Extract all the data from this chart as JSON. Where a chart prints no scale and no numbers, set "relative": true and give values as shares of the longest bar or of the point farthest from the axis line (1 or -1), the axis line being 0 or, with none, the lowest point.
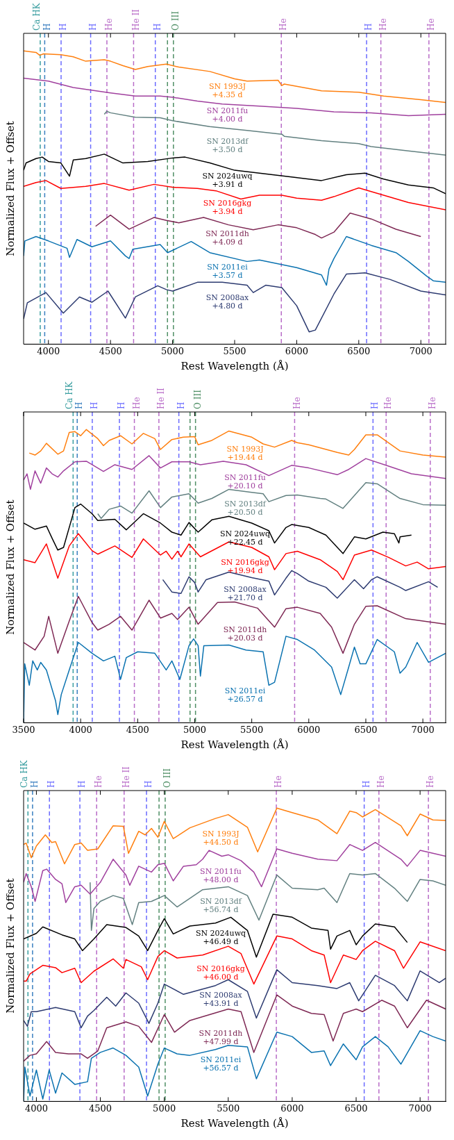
{
  "chart_data": [
    {
      "type": "line",
      "xlabel": "Rest Wavelength (Å)",
      "ylabel": "Normalized Flux + Offset",
      "relative": true,
      "legend": false,
      "grid": false,
      "marker": "none",
      "line_style": "solid",
      "xlim": [
        3800,
        7200
      ],
      "xticks": [
        4000,
        4500,
        5000,
        5500,
        6000,
        6500,
        7000
      ],
      "ref_lines": [
        {
          "axis": "x",
          "value": 3934,
          "label": "Ca HK",
          "color": "#3a9ea0",
          "line_style": "dashed"
        },
        {
          "axis": "x",
          "value": 3970,
          "label": "H",
          "color": "#3a7fc0",
          "line_style": "dashed"
        },
        {
          "axis": "x",
          "value": 4102,
          "label": "H",
          "color": "#6b6bff",
          "line_style": "dashed"
        },
        {
          "axis": "x",
          "value": 4340,
          "label": "H",
          "color": "#6b6bff",
          "line_style": "dashed"
        },
        {
          "axis": "x",
          "value": 4471,
          "label": "He",
          "color": "#b86cc8",
          "line_style": "dashed"
        },
        {
          "axis": "x",
          "value": 4686,
          "label": "He II",
          "color": "#b86cc8",
          "line_style": "dashed"
        },
        {
          "axis": "x",
          "value": 4861,
          "label": "H",
          "color": "#6b6bff",
          "line_style": "dashed"
        },
        {
          "axis": "x",
          "value": 4959,
          "color": "#4f8f65",
          "line_style": "dashed"
        },
        {
          "axis": "x",
          "value": 5007,
          "label": "O III",
          "color": "#4f8f65",
          "line_style": "dashed"
        },
        {
          "axis": "x",
          "value": 5876,
          "label": "He",
          "color": "#b86cc8",
          "line_style": "dashed"
        },
        {
          "axis": "x",
          "value": 6563,
          "label": "H",
          "color": "#6b6bff",
          "line_style": "dashed"
        },
        {
          "axis": "x",
          "value": 6678,
          "label": "He",
          "color": "#b86cc8",
          "line_style": "dashed"
        },
        {
          "axis": "x",
          "value": 7065,
          "label": "He",
          "color": "#b86cc8",
          "line_style": "dashed"
        }
      ],
      "series": [
        {
          "name": "SN 1993J +4.35 d",
          "color": "#ff7f0e",
          "x": [
            3800,
            3900,
            3930,
            3960,
            4100,
            4200,
            4300,
            4350,
            4450,
            4500,
            4600,
            4700,
            4800,
            4950,
            5050,
            5300,
            5500,
            5600,
            5850,
            5880,
            5900,
            6200,
            6500,
            6700,
            7000,
            7200
          ],
          "values": [
            1.0,
            0.995,
            0.985,
            0.99,
            0.987,
            0.98,
            0.965,
            0.967,
            0.97,
            0.965,
            0.95,
            0.937,
            0.947,
            0.955,
            0.945,
            0.93,
            0.905,
            0.897,
            0.9,
            0.882,
            0.887,
            0.864,
            0.859,
            0.846,
            0.834,
            0.824
          ]
        },
        {
          "name": "SN 2011fu +4.00 d",
          "color": "#a0409e",
          "x": [
            3800,
            4000,
            4200,
            4500,
            4700,
            4900,
            5000,
            5200,
            5400,
            5700,
            6000,
            6300,
            6600,
            6900,
            7200
          ],
          "values": [
            0.907,
            0.897,
            0.875,
            0.857,
            0.846,
            0.846,
            0.842,
            0.829,
            0.819,
            0.812,
            0.804,
            0.792,
            0.789,
            0.779,
            0.784
          ]
        },
        {
          "name": "SN 2013df +3.50 d",
          "color": "#628080",
          "x": [
            4450,
            4470,
            4500,
            4700,
            4900,
            5000,
            5300,
            5600,
            5880,
            5900,
            6200,
            6500,
            6600,
            6900,
            7200
          ],
          "values": [
            0.784,
            0.794,
            0.789,
            0.774,
            0.772,
            0.762,
            0.742,
            0.729,
            0.716,
            0.709,
            0.694,
            0.684,
            0.674,
            0.659,
            0.645
          ]
        },
        {
          "name": "SN 2024uwq +3.91 d",
          "color": "#000000",
          "x": [
            3800,
            3820,
            3900,
            3950,
            4000,
            4100,
            4170,
            4200,
            4300,
            4450,
            4600,
            4800,
            5000,
            5100,
            5300,
            5500,
            5700,
            5900,
            6200,
            6400,
            6550,
            6700,
            6900,
            7100,
            7200
          ],
          "values": [
            0.593,
            0.618,
            0.633,
            0.638,
            0.623,
            0.618,
            0.573,
            0.628,
            0.633,
            0.648,
            0.618,
            0.623,
            0.635,
            0.638,
            0.618,
            0.593,
            0.583,
            0.573,
            0.558,
            0.578,
            0.583,
            0.563,
            0.543,
            0.533,
            0.513
          ]
        },
        {
          "name": "SN 2016gkg +3.94 d",
          "color": "#ff0000",
          "x": [
            3800,
            3900,
            3980,
            4100,
            4300,
            4450,
            4650,
            4850,
            5000,
            5200,
            5350,
            5550,
            5700,
            5880,
            6000,
            6200,
            6300,
            6500,
            6700,
            6900,
            7200
          ],
          "values": [
            0.538,
            0.551,
            0.558,
            0.531,
            0.538,
            0.548,
            0.525,
            0.545,
            0.535,
            0.531,
            0.523,
            0.495,
            0.508,
            0.508,
            0.498,
            0.491,
            0.503,
            0.533,
            0.508,
            0.483,
            0.458
          ]
        },
        {
          "name": "SN 2011dh +4.09 d",
          "color": "#7e2854",
          "x": [
            4380,
            4500,
            4650,
            4850,
            4950,
            5050,
            5250,
            5450,
            5650,
            5850,
            6000,
            6150,
            6200,
            6300,
            6430,
            6600,
            6800,
            7000
          ],
          "values": [
            0.402,
            0.44,
            0.392,
            0.432,
            0.422,
            0.414,
            0.432,
            0.407,
            0.39,
            0.407,
            0.397,
            0.374,
            0.362,
            0.382,
            0.447,
            0.427,
            0.392,
            0.367
          ]
        },
        {
          "name": "SN 2011ei +3.57 d",
          "color": "#0a72b0",
          "x": [
            3800,
            3810,
            3900,
            4000,
            4150,
            4170,
            4230,
            4350,
            4500,
            4620,
            4650,
            4680,
            4900,
            4960,
            5150,
            5300,
            5600,
            5700,
            6000,
            6200,
            6240,
            6260,
            6300,
            6400,
            6600,
            6800,
            6900,
            7050,
            7100,
            7200
          ],
          "values": [
            0.301,
            0.352,
            0.367,
            0.352,
            0.327,
            0.296,
            0.357,
            0.332,
            0.352,
            0.301,
            0.292,
            0.324,
            0.34,
            0.312,
            0.35,
            0.312,
            0.282,
            0.287,
            0.261,
            0.236,
            0.201,
            0.256,
            0.292,
            0.367,
            0.337,
            0.312,
            0.282,
            0.231,
            0.216,
            0.211
          ]
        },
        {
          "name": "SN 2008ax +4.80 d",
          "color": "#2c3a70",
          "x": [
            3800,
            3830,
            3980,
            4120,
            4250,
            4350,
            4480,
            4620,
            4700,
            4880,
            4950,
            5000,
            5200,
            5400,
            5600,
            5650,
            5750,
            5880,
            6000,
            6100,
            6150,
            6300,
            6400,
            6550,
            6750,
            7000,
            7200
          ],
          "values": [
            0.086,
            0.141,
            0.176,
            0.106,
            0.161,
            0.143,
            0.181,
            0.089,
            0.161,
            0.199,
            0.186,
            0.181,
            0.211,
            0.211,
            0.201,
            0.176,
            0.201,
            0.193,
            0.131,
            0.042,
            0.048,
            0.171,
            0.239,
            0.243,
            0.221,
            0.181,
            0.168
          ]
        }
      ]
    },
    {
      "type": "line",
      "xlabel": "Rest Wavelength (Å)",
      "ylabel": "Normalized Flux + Offset",
      "relative": true,
      "legend": false,
      "grid": false,
      "marker": "none",
      "line_style": "solid",
      "xlim": [
        3500,
        7200
      ],
      "xticks": [
        3500,
        4000,
        4500,
        5000,
        5500,
        6000,
        6500,
        7000
      ],
      "ref_lines": [
        {
          "axis": "x",
          "value": 3934,
          "label": "Ca HK",
          "color": "#3a9ea0",
          "line_style": "dashed"
        },
        {
          "axis": "x",
          "value": 3970,
          "label": "H",
          "color": "#3a7fc0",
          "line_style": "dashed"
        },
        {
          "axis": "x",
          "value": 4102,
          "label": "H",
          "color": "#6b6bff",
          "line_style": "dashed"
        },
        {
          "axis": "x",
          "value": 4340,
          "label": "H",
          "color": "#6b6bff",
          "line_style": "dashed"
        },
        {
          "axis": "x",
          "value": 4471,
          "label": "He",
          "color": "#b86cc8",
          "line_style": "dashed"
        },
        {
          "axis": "x",
          "value": 4686,
          "label": "He II",
          "color": "#b86cc8",
          "line_style": "dashed"
        },
        {
          "axis": "x",
          "value": 4861,
          "label": "H",
          "color": "#6b6bff",
          "line_style": "dashed"
        },
        {
          "axis": "x",
          "value": 4959,
          "color": "#4f8f65",
          "line_style": "dashed"
        },
        {
          "axis": "x",
          "value": 5007,
          "label": "O III",
          "color": "#4f8f65",
          "line_style": "dashed"
        },
        {
          "axis": "x",
          "value": 5876,
          "label": "He",
          "color": "#b86cc8",
          "line_style": "dashed"
        },
        {
          "axis": "x",
          "value": 6563,
          "label": "H",
          "color": "#6b6bff",
          "line_style": "dashed"
        },
        {
          "axis": "x",
          "value": 6678,
          "label": "He",
          "color": "#b86cc8",
          "line_style": "dashed"
        },
        {
          "axis": "x",
          "value": 7065,
          "label": "He",
          "color": "#b86cc8",
          "line_style": "dashed"
        }
      ],
      "series": [
        {
          "name": "SN 1993J +19.44 d",
          "color": "#ff7f0e",
          "x": [
            3550,
            3600,
            3650,
            3700,
            3800,
            3850,
            3900,
            3950,
            4000,
            4050,
            4150,
            4200,
            4250,
            4350,
            4450,
            4550,
            4650,
            4700,
            4800,
            4900,
            5000,
            5030,
            5150,
            5300,
            5500,
            5600,
            5700,
            5850,
            5900,
            6000,
            6250,
            6350,
            6400,
            6500,
            6600,
            6800,
            7000,
            7200
          ],
          "values": [
            0.92,
            0.913,
            0.927,
            0.953,
            0.916,
            0.927,
            0.99,
            0.993,
            0.979,
            1.0,
            0.969,
            0.945,
            0.963,
            0.979,
            0.951,
            0.987,
            0.969,
            0.932,
            0.966,
            0.974,
            0.976,
            0.948,
            0.963,
            0.995,
            0.974,
            0.951,
            0.94,
            0.963,
            0.955,
            0.948,
            0.922,
            0.913,
            0.932,
            0.982,
            0.982,
            0.927,
            0.913,
            0.906
          ]
        },
        {
          "name": "SN 2011fu +20.10 d",
          "color": "#a0409e",
          "x": [
            3500,
            3530,
            3560,
            3600,
            3650,
            3700,
            3750,
            3800,
            3850,
            3950,
            4050,
            4200,
            4300,
            4450,
            4600,
            4700,
            4800,
            4950,
            5050,
            5250,
            5450,
            5650,
            5850,
            6000,
            6250,
            6350,
            6500,
            6700,
            6900,
            7200
          ],
          "values": [
            0.828,
            0.849,
            0.796,
            0.859,
            0.817,
            0.869,
            0.849,
            0.838,
            0.859,
            0.89,
            0.892,
            0.857,
            0.88,
            0.864,
            0.911,
            0.869,
            0.89,
            0.89,
            0.88,
            0.892,
            0.88,
            0.843,
            0.878,
            0.869,
            0.846,
            0.864,
            0.901,
            0.875,
            0.849,
            0.833
          ]
        },
        {
          "name": "SN 2013df +20.50 d",
          "color": "#628080",
          "x": [
            4150,
            4180,
            4250,
            4350,
            4450,
            4600,
            4700,
            4800,
            4950,
            5030,
            5150,
            5300,
            5500,
            5600,
            5650,
            5800,
            5900,
            6100,
            6150,
            6300,
            6500,
            6600,
            6800,
            7000,
            7200
          ],
          "values": [
            0.713,
            0.697,
            0.728,
            0.739,
            0.715,
            0.791,
            0.734,
            0.77,
            0.781,
            0.749,
            0.765,
            0.796,
            0.786,
            0.781,
            0.754,
            0.775,
            0.777,
            0.765,
            0.763,
            0.731,
            0.819,
            0.815,
            0.765,
            0.744,
            0.742
          ]
        },
        {
          "name": "SN 2024uwq +22.45 d",
          "color": "#000000",
          "x": [
            3500,
            3600,
            3700,
            3750,
            3800,
            3850,
            3950,
            4000,
            4100,
            4150,
            4300,
            4400,
            4550,
            4700,
            4800,
            4880,
            4950,
            5030,
            5150,
            5300,
            5500,
            5650,
            5700,
            5800,
            5850,
            6000,
            6150,
            6300,
            6400,
            6500,
            6650,
            6750,
            6790,
            6800,
            6900
          ],
          "values": [
            0.681,
            0.66,
            0.671,
            0.629,
            0.589,
            0.598,
            0.734,
            0.746,
            0.713,
            0.69,
            0.694,
            0.658,
            0.713,
            0.681,
            0.65,
            0.64,
            0.683,
            0.65,
            0.692,
            0.704,
            0.681,
            0.655,
            0.613,
            0.666,
            0.676,
            0.666,
            0.64,
            0.577,
            0.634,
            0.627,
            0.65,
            0.645,
            0.613,
            0.634,
            0.64
          ]
        },
        {
          "name": "SN 2016gkg +19.94 d",
          "color": "#ff0000",
          "x": [
            3500,
            3600,
            3700,
            3800,
            3900,
            3980,
            4100,
            4150,
            4300,
            4450,
            4550,
            4700,
            4750,
            4800,
            4850,
            4880,
            4950,
            5050,
            5300,
            5500,
            5650,
            5700,
            5800,
            5900,
            6100,
            6250,
            6300,
            6400,
            6550,
            6700,
            6850,
            6950,
            7050,
            7200
          ],
          "values": [
            0.556,
            0.546,
            0.61,
            0.493,
            0.603,
            0.645,
            0.587,
            0.575,
            0.603,
            0.564,
            0.627,
            0.572,
            0.585,
            0.558,
            0.585,
            0.566,
            0.61,
            0.566,
            0.617,
            0.598,
            0.566,
            0.522,
            0.577,
            0.585,
            0.556,
            0.516,
            0.488,
            0.572,
            0.589,
            0.564,
            0.535,
            0.548,
            0.525,
            0.533
          ]
        },
        {
          "name": "SN 2008ax +21.70 d",
          "color": "#2c3a70",
          "x": [
            4720,
            4800,
            4880,
            4950,
            5000,
            5030,
            5100,
            5300,
            5500,
            5650,
            5700,
            5800,
            5850,
            5900,
            6000,
            6150,
            6250,
            6400,
            6480,
            6550,
            6600,
            6800,
            6850,
            7050,
            7130
          ],
          "values": [
            0.488,
            0.446,
            0.441,
            0.498,
            0.478,
            0.446,
            0.488,
            0.514,
            0.495,
            0.483,
            0.436,
            0.493,
            0.519,
            0.509,
            0.483,
            0.462,
            0.425,
            0.488,
            0.457,
            0.488,
            0.498,
            0.462,
            0.451,
            0.481,
            0.462
          ]
        },
        {
          "name": "SN 2011dh +20.03 d",
          "color": "#7e2854",
          "x": [
            3500,
            3600,
            3680,
            3720,
            3800,
            3900,
            3980,
            4100,
            4150,
            4250,
            4350,
            4450,
            4600,
            4700,
            4800,
            4850,
            4950,
            5030,
            5200,
            5350,
            5550,
            5700,
            5800,
            5900,
            6100,
            6200,
            6300,
            6400,
            6500,
            6600,
            6850,
            7200
          ],
          "values": [
            0.274,
            0.248,
            0.295,
            0.363,
            0.237,
            0.347,
            0.431,
            0.342,
            0.316,
            0.336,
            0.363,
            0.316,
            0.418,
            0.357,
            0.373,
            0.352,
            0.394,
            0.336,
            0.41,
            0.412,
            0.391,
            0.326,
            0.389,
            0.394,
            0.373,
            0.326,
            0.237,
            0.336,
            0.397,
            0.399,
            0.355,
            0.336
          ]
        },
        {
          "name": "SN 2011ei +26.57 d",
          "color": "#0a72b0",
          "x": [
            3500,
            3510,
            3550,
            3580,
            3620,
            3650,
            3700,
            3780,
            3800,
            3830,
            3900,
            3980,
            4100,
            4200,
            4300,
            4350,
            4400,
            4500,
            4650,
            4750,
            4800,
            4870,
            4950,
            4990,
            5030,
            5050,
            5080,
            5300,
            5450,
            5600,
            5650,
            5700,
            5800,
            5900,
            6050,
            6200,
            6280,
            6350,
            6400,
            6450,
            6500,
            6600,
            6750,
            6800,
            6850,
            6950,
            7050,
            7200
          ],
          "values": [
            0.0,
            0.201,
            0.128,
            0.211,
            0.18,
            0.206,
            0.18,
            0.075,
            0.028,
            0.096,
            0.18,
            0.274,
            0.237,
            0.211,
            0.227,
            0.148,
            0.222,
            0.242,
            0.237,
            0.18,
            0.211,
            0.148,
            0.263,
            0.286,
            0.263,
            0.159,
            0.263,
            0.265,
            0.248,
            0.242,
            0.128,
            0.138,
            0.295,
            0.284,
            0.248,
            0.19,
            0.096,
            0.19,
            0.258,
            0.201,
            0.201,
            0.284,
            0.242,
            0.169,
            0.19,
            0.274,
            0.206,
            0.237
          ]
        }
      ]
    },
    {
      "type": "line",
      "xlabel": "Rest Wavelength (Å)",
      "ylabel": "Normalized Flux + Offset",
      "relative": true,
      "legend": false,
      "grid": false,
      "marker": "none",
      "line_style": "solid",
      "xlim": [
        3900,
        7200
      ],
      "xticks": [
        4000,
        4500,
        5000,
        5500,
        6000,
        6500,
        7000
      ],
      "ref_lines": [
        {
          "axis": "x",
          "value": 3934,
          "label": "Ca HK",
          "color": "#3a9ea0",
          "line_style": "dashed"
        },
        {
          "axis": "x",
          "value": 3970,
          "label": "H",
          "color": "#3a7fc0",
          "line_style": "dashed"
        },
        {
          "axis": "x",
          "value": 4102,
          "label": "H",
          "color": "#6b6bff",
          "line_style": "dashed"
        },
        {
          "axis": "x",
          "value": 4340,
          "label": "H",
          "color": "#6b6bff",
          "line_style": "dashed"
        },
        {
          "axis": "x",
          "value": 4471,
          "label": "He",
          "color": "#b86cc8",
          "line_style": "dashed"
        },
        {
          "axis": "x",
          "value": 4686,
          "label": "He II",
          "color": "#b86cc8",
          "line_style": "dashed"
        },
        {
          "axis": "x",
          "value": 4861,
          "label": "H",
          "color": "#6b6bff",
          "line_style": "dashed"
        },
        {
          "axis": "x",
          "value": 4959,
          "color": "#4f8f65",
          "line_style": "dashed"
        },
        {
          "axis": "x",
          "value": 5007,
          "label": "O III",
          "color": "#4f8f65",
          "line_style": "dashed"
        },
        {
          "axis": "x",
          "value": 5876,
          "label": "He",
          "color": "#b86cc8",
          "line_style": "dashed"
        },
        {
          "axis": "x",
          "value": 6563,
          "label": "H",
          "color": "#6b6bff",
          "line_style": "dashed"
        },
        {
          "axis": "x",
          "value": 6678,
          "label": "He",
          "color": "#b86cc8",
          "line_style": "dashed"
        },
        {
          "axis": "x",
          "value": 7065,
          "label": "He",
          "color": "#b86cc8",
          "line_style": "dashed"
        }
      ],
      "series": [
        {
          "name": "SN 1993J +44.50 d",
          "color": "#ff7f0e",
          "x": [
            3900,
            3920,
            3960,
            4000,
            4070,
            4120,
            4150,
            4220,
            4300,
            4350,
            4400,
            4480,
            4600,
            4680,
            4720,
            4800,
            4850,
            4900,
            4950,
            5000,
            5070,
            5200,
            5400,
            5500,
            5650,
            5730,
            5880,
            6000,
            6200,
            6350,
            6450,
            6500,
            6550,
            6650,
            6850,
            6900,
            7000,
            7100,
            7200
          ],
          "values": [
            0.876,
            0.881,
            0.831,
            0.871,
            0.909,
            0.883,
            0.886,
            0.81,
            0.876,
            0.881,
            0.856,
            0.861,
            0.94,
            0.938,
            0.846,
            0.921,
            0.909,
            0.931,
            0.901,
            0.955,
            0.896,
            0.933,
            0.965,
            0.978,
            0.935,
            0.851,
            1.0,
            0.985,
            0.96,
            0.913,
            0.99,
            0.985,
            0.97,
            0.995,
            0.94,
            0.906,
            0.98,
            0.96,
            0.958
          ]
        },
        {
          "name": "SN 2011fu +48.00 d",
          "color": "#a0409e",
          "x": [
            3900,
            3920,
            3960,
            3990,
            4050,
            4080,
            4150,
            4200,
            4230,
            4300,
            4350,
            4420,
            4500,
            4600,
            4700,
            4730,
            4800,
            4900,
            4950,
            5000,
            5070,
            5150,
            5250,
            5300,
            5350,
            5450,
            5500,
            5600,
            5700,
            5760,
            5880,
            6000,
            6200,
            6350,
            6450,
            6550,
            6650,
            6850,
            6900,
            7000,
            7100,
            7200
          ],
          "values": [
            0.747,
            0.777,
            0.732,
            0.682,
            0.787,
            0.792,
            0.757,
            0.742,
            0.678,
            0.732,
            0.737,
            0.707,
            0.747,
            0.826,
            0.772,
            0.737,
            0.802,
            0.782,
            0.807,
            0.812,
            0.752,
            0.802,
            0.807,
            0.826,
            0.856,
            0.836,
            0.841,
            0.821,
            0.782,
            0.732,
            0.861,
            0.846,
            0.826,
            0.821,
            0.876,
            0.856,
            0.883,
            0.826,
            0.802,
            0.856,
            0.846,
            0.836
          ]
        },
        {
          "name": "SN 2013df +56.74 d",
          "color": "#628080",
          "x": [
            4420,
            4430,
            4450,
            4500,
            4600,
            4680,
            4750,
            4800,
            4900,
            5000,
            5100,
            5300,
            5500,
            5650,
            5740,
            5880,
            6000,
            6200,
            6250,
            6350,
            6450,
            6550,
            6650,
            6800,
            6900,
            7000,
            7100,
            7200
          ],
          "values": [
            0.747,
            0.583,
            0.658,
            0.682,
            0.702,
            0.692,
            0.603,
            0.678,
            0.682,
            0.702,
            0.663,
            0.722,
            0.732,
            0.702,
            0.618,
            0.772,
            0.727,
            0.722,
            0.727,
            0.678,
            0.777,
            0.772,
            0.777,
            0.727,
            0.682,
            0.757,
            0.752,
            0.737
          ]
        },
        {
          "name": "SN 2024uwq +46.49 d",
          "color": "#000000",
          "x": [
            3900,
            4000,
            4050,
            4200,
            4300,
            4360,
            4450,
            4550,
            4700,
            4800,
            4870,
            4950,
            5000,
            5070,
            5200,
            5400,
            5520,
            5650,
            5720,
            5850,
            6000,
            6150,
            6280,
            6300,
            6350,
            6450,
            6500,
            6550,
            6650,
            6800,
            6900
          ],
          "values": [
            0.554,
            0.573,
            0.595,
            0.568,
            0.554,
            0.514,
            0.554,
            0.603,
            0.593,
            0.564,
            0.514,
            0.583,
            0.623,
            0.571,
            0.598,
            0.608,
            0.628,
            0.583,
            0.492,
            0.638,
            0.628,
            0.591,
            0.583,
            0.519,
            0.564,
            0.583,
            0.534,
            0.564,
            0.605,
            0.595,
            0.542
          ]
        },
        {
          "name": "SN 2016gkg +46.00 d",
          "color": "#ff0000",
          "x": [
            3900,
            3920,
            3950,
            4050,
            4150,
            4200,
            4300,
            4350,
            4450,
            4600,
            4680,
            4700,
            4820,
            4870,
            4950,
            5000,
            5100,
            5300,
            5500,
            5600,
            5700,
            5880,
            6000,
            6150,
            6250,
            6300,
            6400,
            6500,
            6550,
            6650,
            6800,
            6870,
            7000,
            7200
          ],
          "values": [
            0.41,
            0.41,
            0.435,
            0.464,
            0.456,
            0.439,
            0.454,
            0.405,
            0.444,
            0.486,
            0.454,
            0.484,
            0.459,
            0.415,
            0.494,
            0.514,
            0.489,
            0.499,
            0.529,
            0.504,
            0.4,
            0.564,
            0.554,
            0.514,
            0.499,
            0.405,
            0.499,
            0.484,
            0.514,
            0.546,
            0.514,
            0.454,
            0.544,
            0.514
          ]
        },
        {
          "name": "SN 2008ax +43.91 d",
          "color": "#2c3a70",
          "x": [
            3900,
            3930,
            3960,
            4000,
            4150,
            4300,
            4350,
            4400,
            4450,
            4550,
            4620,
            4700,
            4800,
            4880,
            4950,
            5000,
            5150,
            5400,
            5500,
            5650,
            5720,
            5880,
            6000,
            6200,
            6350,
            6450,
            6520,
            6650,
            6800,
            6900,
            7000,
            7150,
            7200
          ],
          "values": [
            0.276,
            0.256,
            0.306,
            0.306,
            0.32,
            0.306,
            0.251,
            0.291,
            0.31,
            0.355,
            0.325,
            0.37,
            0.335,
            0.266,
            0.335,
            0.4,
            0.365,
            0.395,
            0.415,
            0.375,
            0.284,
            0.449,
            0.405,
            0.395,
            0.385,
            0.405,
            0.343,
            0.43,
            0.395,
            0.343,
            0.445,
            0.405,
            0.42
          ]
        },
        {
          "name": "SN 2011dh +47.99 d",
          "color": "#7e2854",
          "x": [
            3900,
            3950,
            4000,
            4080,
            4150,
            4250,
            4350,
            4400,
            4480,
            4550,
            4700,
            4800,
            4900,
            5000,
            5080,
            5200,
            5500,
            5600,
            5700,
            5880,
            6000,
            6150,
            6250,
            6320,
            6400,
            6500,
            6550,
            6700,
            6800,
            6900,
            7050,
            7200
          ],
          "values": [
            0.137,
            0.157,
            0.162,
            0.204,
            0.167,
            0.162,
            0.162,
            0.147,
            0.172,
            0.251,
            0.271,
            0.256,
            0.201,
            0.296,
            0.236,
            0.276,
            0.315,
            0.306,
            0.167,
            0.363,
            0.325,
            0.3,
            0.296,
            0.206,
            0.3,
            0.315,
            0.306,
            0.345,
            0.325,
            0.251,
            0.345,
            0.315
          ]
        },
        {
          "name": "SN 2011ei +56.57 d",
          "color": "#0a72b0",
          "x": [
            3900,
            3910,
            3950,
            4000,
            4050,
            4100,
            4150,
            4200,
            4300,
            4400,
            4430,
            4500,
            4600,
            4700,
            4800,
            4870,
            4950,
            5000,
            5100,
            5200,
            5400,
            5500,
            5650,
            5720,
            5880,
            6000,
            6150,
            6250,
            6300,
            6400,
            6500,
            6550,
            6650,
            6750,
            6850,
            7000,
            7100,
            7200
          ],
          "values": [
            0.0,
            0.117,
            0.018,
            0.107,
            0.008,
            0.107,
            0.028,
            0.097,
            0.058,
            0.067,
            0.147,
            0.167,
            0.182,
            0.157,
            0.117,
            0.018,
            0.127,
            0.182,
            0.162,
            0.157,
            0.177,
            0.191,
            0.186,
            0.077,
            0.236,
            0.221,
            0.167,
            0.172,
            0.122,
            0.196,
            0.142,
            0.186,
            0.221,
            0.186,
            0.127,
            0.241,
            0.221,
            0.206
          ]
        }
      ]
    }
  ]
}
